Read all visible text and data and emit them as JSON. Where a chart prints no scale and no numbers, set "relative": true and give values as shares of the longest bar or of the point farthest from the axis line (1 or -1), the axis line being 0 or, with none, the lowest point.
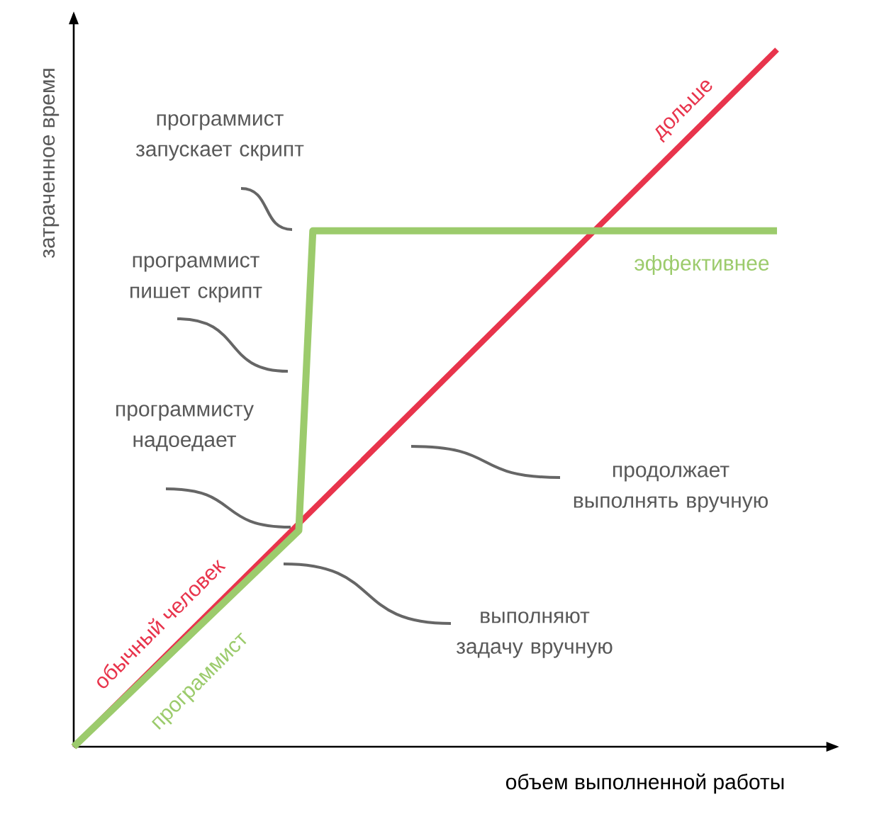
{
  "chart_data": {
    "type": "line",
    "relative": true,
    "xlabel": "объем выполненной работы",
    "ylabel": "затраченное время",
    "categories": [
      null,
      null,
      null,
      null,
      null,
      null,
      null,
      null,
      null,
      null,
      null,
      null,
      null,
      null,
      null,
      null,
      null,
      null,
      null,
      null,
      null,
      null,
      null,
      null,
      null,
      null,
      null,
      null,
      null,
      null,
      null,
      null,
      null,
      null,
      null,
      null,
      null,
      null,
      null,
      null,
      null,
      null,
      null,
      null,
      null,
      null,
      null,
      null,
      null,
      null,
      null
    ],
    "series": [
      {
        "name": "обычный человек",
        "color": "#e8344c",
        "values": [
          0.0,
          null,
          null,
          null,
          null,
          null,
          null,
          null,
          null,
          null,
          null,
          null,
          null,
          null,
          null,
          null,
          null,
          null,
          null,
          null,
          null,
          null,
          null,
          null,
          null,
          null,
          null,
          null,
          null,
          null,
          null,
          null,
          null,
          null,
          null,
          null,
          null,
          null,
          null,
          null,
          null,
          null,
          null,
          null,
          null,
          null,
          null,
          null,
          null,
          null,
          1.0
        ]
      },
      {
        "name": "программист",
        "color": "#9ccb6c",
        "values": [
          0.0,
          null,
          null,
          null,
          null,
          null,
          null,
          null,
          null,
          null,
          null,
          null,
          null,
          null,
          null,
          null,
          0.31,
          0.74,
          null,
          null,
          null,
          null,
          null,
          null,
          null,
          null,
          null,
          null,
          null,
          null,
          null,
          null,
          null,
          null,
          null,
          null,
          null,
          null,
          null,
          null,
          null,
          null,
          null,
          null,
          null,
          null,
          null,
          null,
          null,
          null,
          0.74
        ]
      }
    ],
    "annotations": [
      "программист запускает скрипт",
      "программист пишет скрипт",
      "программисту надоедает",
      "продолжает выполнять вручную",
      "выполняют задачу вручную",
      "дольше",
      "эффективнее"
    ]
  }
}
